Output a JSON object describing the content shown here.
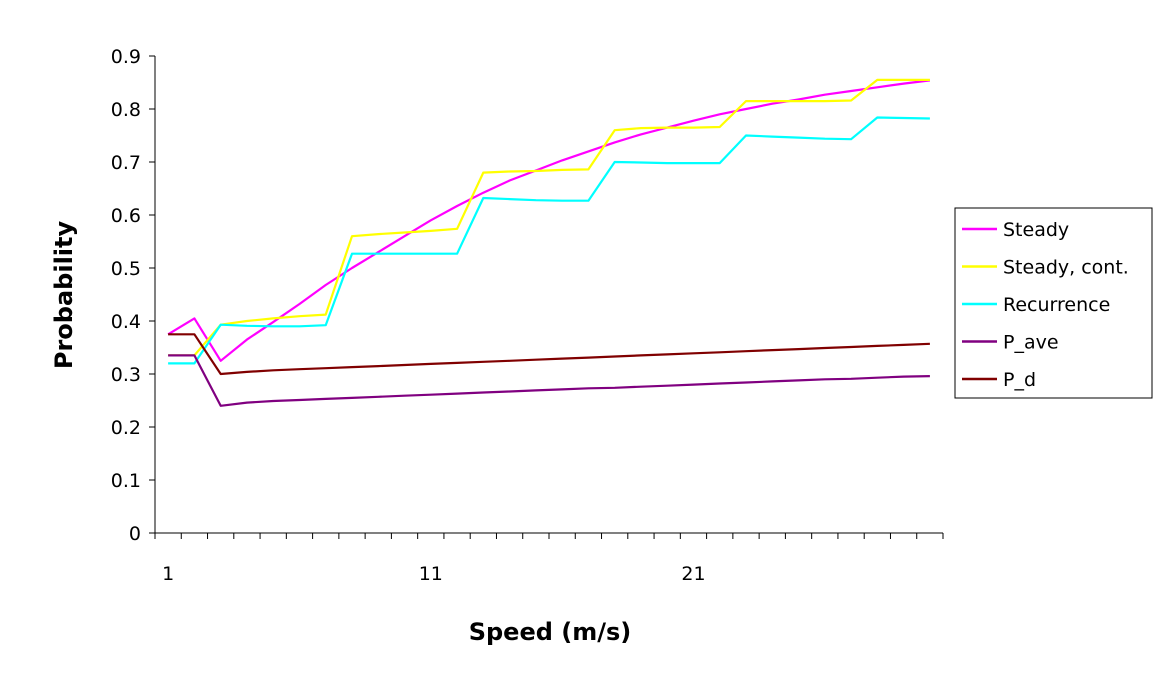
{
  "chart_data": {
    "type": "line",
    "title": "",
    "xlabel": "Speed (m/s)",
    "ylabel": "Probability",
    "xlim": [
      1,
      30
    ],
    "ylim": [
      0,
      0.9
    ],
    "y_ticks": [
      "0",
      "0.1",
      "0.2",
      "0.3",
      "0.4",
      "0.5",
      "0.6",
      "0.7",
      "0.8",
      "0.9"
    ],
    "x_tick_labels": [
      {
        "value": 1,
        "label": "1"
      },
      {
        "value": 11,
        "label": "11"
      },
      {
        "value": 21,
        "label": "21"
      }
    ],
    "grid": false,
    "legend_position": "right",
    "x": [
      1,
      2,
      3,
      4,
      5,
      6,
      7,
      8,
      9,
      10,
      11,
      12,
      13,
      14,
      15,
      16,
      17,
      18,
      19,
      20,
      21,
      22,
      23,
      24,
      25,
      26,
      27,
      28,
      29,
      30
    ],
    "series": [
      {
        "name": "Steady",
        "color": "#ff00ff",
        "values": [
          0.375,
          0.405,
          0.325,
          0.365,
          0.398,
          0.432,
          0.468,
          0.5,
          0.53,
          0.56,
          0.59,
          0.617,
          0.642,
          0.665,
          0.684,
          0.703,
          0.72,
          0.737,
          0.752,
          0.765,
          0.778,
          0.79,
          0.8,
          0.81,
          0.818,
          0.827,
          0.834,
          0.841,
          0.848,
          0.854
        ]
      },
      {
        "name": "Steady, cont.",
        "color": "#ffff00",
        "values": [
          0.335,
          0.335,
          0.393,
          0.4,
          0.405,
          0.409,
          0.412,
          0.56,
          0.564,
          0.567,
          0.57,
          0.574,
          0.68,
          0.682,
          0.683,
          0.685,
          0.686,
          0.76,
          0.764,
          0.765,
          0.765,
          0.766,
          0.815,
          0.815,
          0.815,
          0.815,
          0.816,
          0.855,
          0.855,
          0.855
        ]
      },
      {
        "name": "Recurrence",
        "color": "#00ffff",
        "values": [
          0.32,
          0.32,
          0.393,
          0.391,
          0.39,
          0.39,
          0.392,
          0.527,
          0.527,
          0.527,
          0.527,
          0.527,
          0.632,
          0.63,
          0.628,
          0.627,
          0.627,
          0.7,
          0.699,
          0.698,
          0.698,
          0.698,
          0.75,
          0.748,
          0.746,
          0.744,
          0.743,
          0.784,
          0.783,
          0.782
        ]
      },
      {
        "name": "P_ave",
        "color": "#800080",
        "values": [
          0.335,
          0.335,
          0.24,
          0.246,
          0.249,
          0.251,
          0.253,
          0.255,
          0.257,
          0.259,
          0.261,
          0.263,
          0.265,
          0.267,
          0.269,
          0.271,
          0.273,
          0.274,
          0.276,
          0.278,
          0.28,
          0.282,
          0.284,
          0.286,
          0.288,
          0.29,
          0.291,
          0.293,
          0.295,
          0.296
        ]
      },
      {
        "name": "P_d",
        "color": "#800000",
        "values": [
          0.375,
          0.375,
          0.3,
          0.304,
          0.307,
          0.309,
          0.311,
          0.313,
          0.315,
          0.317,
          0.319,
          0.321,
          0.323,
          0.325,
          0.327,
          0.329,
          0.331,
          0.333,
          0.335,
          0.337,
          0.339,
          0.341,
          0.343,
          0.345,
          0.347,
          0.349,
          0.351,
          0.353,
          0.355,
          0.357
        ]
      }
    ]
  }
}
